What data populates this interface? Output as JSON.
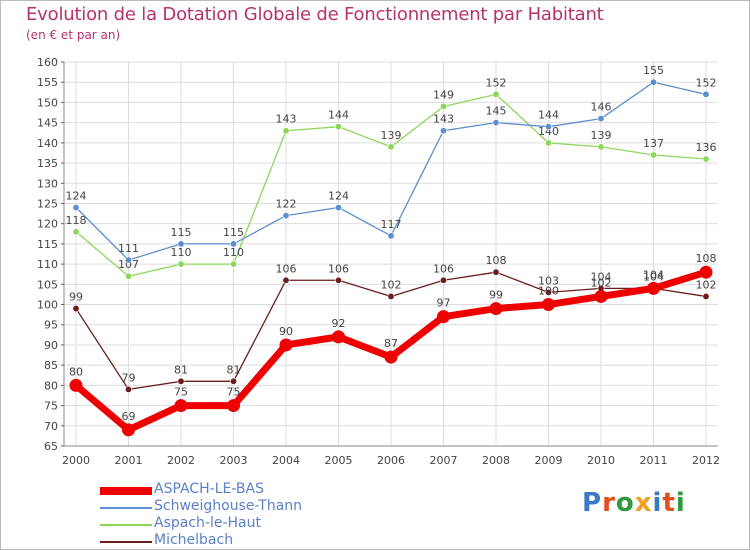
{
  "title": "Evolution de la Dotation Globale de Fonctionnement par Habitant",
  "subtitle": "(en € et par an)",
  "logo_text": "Proxiti",
  "logo_colors": [
    "#3a78c9",
    "#e0501c",
    "#2e9a3d",
    "#f0a020",
    "#3a78c9",
    "#e0501c",
    "#2e9a3d"
  ],
  "chart_data": {
    "type": "line",
    "title": "Evolution de la Dotation Globale de Fonctionnement par Habitant",
    "ylabel": "(en € et par an)",
    "xlabel": "",
    "x": [
      "2000",
      "2001",
      "2002",
      "2003",
      "2004",
      "2005",
      "2006",
      "2007",
      "2008",
      "2009",
      "2010",
      "2011",
      "2012"
    ],
    "ylim": [
      65,
      160
    ],
    "yticks": [
      65,
      70,
      75,
      80,
      85,
      90,
      95,
      100,
      105,
      110,
      115,
      120,
      125,
      130,
      135,
      140,
      145,
      150,
      155,
      160
    ],
    "grid": true,
    "legend_position": "bottom-left",
    "series": [
      {
        "name": "Michelbach",
        "color": "#6b1c1c",
        "values": [
          99,
          79,
          81,
          81,
          106,
          106,
          102,
          106,
          108,
          103,
          104,
          104,
          102
        ]
      },
      {
        "name": "Aspach-le-Haut",
        "color": "#8cd65a",
        "values": [
          118,
          107,
          110,
          110,
          143,
          144,
          139,
          149,
          152,
          140,
          139,
          137,
          136
        ]
      },
      {
        "name": "Schweighouse-Thann",
        "color": "#5b8fd0",
        "values": [
          124,
          111,
          115,
          115,
          122,
          124,
          117,
          143,
          145,
          144,
          146,
          155,
          152
        ]
      },
      {
        "name": "ASPACH-LE-BAS",
        "color": "#ee0000",
        "values": [
          80,
          69,
          75,
          75,
          90,
          92,
          87,
          97,
          99,
          100,
          102,
          104,
          108
        ]
      }
    ],
    "legend_order": [
      "ASPACH-LE-BAS",
      "Schweighouse-Thann",
      "Aspach-le-Haut",
      "Michelbach"
    ]
  }
}
